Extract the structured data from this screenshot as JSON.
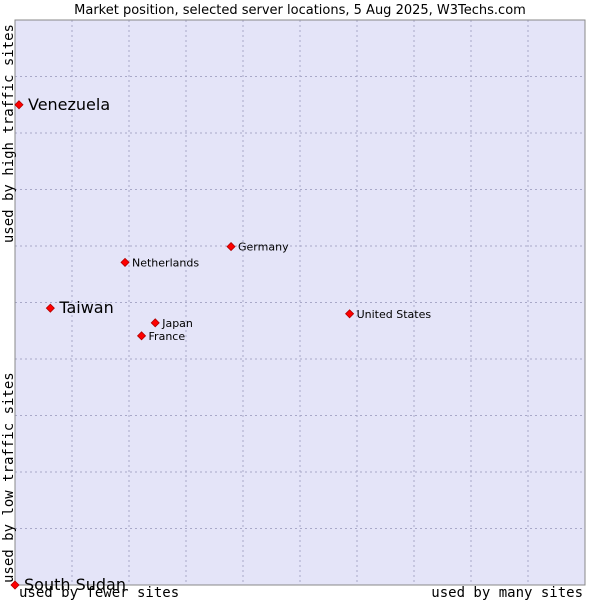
{
  "chart_data": {
    "type": "scatter",
    "title": "Market position, selected server locations, 5 Aug 2025, W3Techs.com",
    "x_label_low": "used by fewer sites",
    "x_label_high": "used by many sites",
    "y_label_low": "used by low traffic sites",
    "y_label_high": "used by high traffic sites",
    "xlim": [
      0,
      100
    ],
    "ylim": [
      0,
      100
    ],
    "grid": true,
    "point_color": "#ff0000",
    "plot_background": "#e4e4f8",
    "points": [
      {
        "name": "Venezuela",
        "x": 0.7,
        "y": 85.0,
        "size": "large"
      },
      {
        "name": "Germany",
        "x": 37.9,
        "y": 59.9,
        "size": "small"
      },
      {
        "name": "Netherlands",
        "x": 19.3,
        "y": 57.1,
        "size": "small"
      },
      {
        "name": "Taiwan",
        "x": 6.2,
        "y": 49.0,
        "size": "large"
      },
      {
        "name": "United States",
        "x": 58.7,
        "y": 48.0,
        "size": "small"
      },
      {
        "name": "Japan",
        "x": 24.6,
        "y": 46.4,
        "size": "small"
      },
      {
        "name": "France",
        "x": 22.2,
        "y": 44.1,
        "size": "small"
      },
      {
        "name": "South Sudan",
        "x": 0.0,
        "y": 0.0,
        "size": "large"
      }
    ]
  }
}
